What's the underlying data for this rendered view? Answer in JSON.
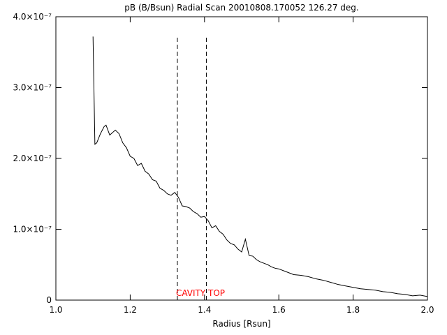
{
  "chart_data": {
    "type": "line",
    "title": "pB (B/Bsun) Radial Scan 20010808.170052 126.27 deg.",
    "x_label": "Radius [Rsun]",
    "x": [
      1.1,
      1.105,
      1.11,
      1.12,
      1.13,
      1.135,
      1.145,
      1.16,
      1.17,
      1.18,
      1.19,
      1.2,
      1.21,
      1.22,
      1.23,
      1.24,
      1.25,
      1.26,
      1.27,
      1.28,
      1.29,
      1.3,
      1.31,
      1.32,
      1.33,
      1.34,
      1.35,
      1.36,
      1.37,
      1.38,
      1.39,
      1.4,
      1.41,
      1.42,
      1.43,
      1.44,
      1.45,
      1.46,
      1.47,
      1.48,
      1.49,
      1.5,
      1.51,
      1.52,
      1.53,
      1.54,
      1.55,
      1.56,
      1.57,
      1.58,
      1.59,
      1.6,
      1.62,
      1.64,
      1.66,
      1.68,
      1.7,
      1.72,
      1.74,
      1.76,
      1.78,
      1.8,
      1.82,
      1.84,
      1.86,
      1.88,
      1.9,
      1.92,
      1.94,
      1.96,
      1.98,
      2.0
    ],
    "series": [
      {
        "color": "#000000",
        "values": [
          3.72e-07,
          2.2e-07,
          2.22e-07,
          2.35e-07,
          2.45e-07,
          2.47e-07,
          2.33e-07,
          2.4e-07,
          2.35e-07,
          2.22e-07,
          2.15e-07,
          2.03e-07,
          2e-07,
          1.9e-07,
          1.93e-07,
          1.82e-07,
          1.78e-07,
          1.7e-07,
          1.68e-07,
          1.58e-07,
          1.55e-07,
          1.5e-07,
          1.48e-07,
          1.52e-07,
          1.45e-07,
          1.33e-07,
          1.32e-07,
          1.3e-07,
          1.25e-07,
          1.22e-07,
          1.17e-07,
          1.18e-07,
          1.12e-07,
          1.02e-07,
          1.05e-07,
          9.7e-08,
          9.3e-08,
          8.5e-08,
          8e-08,
          7.8e-08,
          7.2e-08,
          6.8e-08,
          8.6e-08,
          6.3e-08,
          6.2e-08,
          5.7e-08,
          5.4e-08,
          5.2e-08,
          5e-08,
          4.7e-08,
          4.5e-08,
          4.4e-08,
          4e-08,
          3.6e-08,
          3.5e-08,
          3.3e-08,
          3e-08,
          2.8e-08,
          2.5e-08,
          2.2e-08,
          2e-08,
          1.8e-08,
          1.6e-08,
          1.5e-08,
          1.4e-08,
          1.2e-08,
          1.1e-08,
          9e-09,
          8e-09,
          6e-09,
          7e-09,
          5e-09
        ]
      }
    ],
    "xlim": [
      1.0,
      2.0
    ],
    "xticks": [
      {
        "value": 1.0,
        "label": "1.0"
      },
      1.2,
      1.4,
      1.6,
      1.8,
      {
        "value": 2.0,
        "label": "2.0"
      }
    ],
    "ylim": [
      0,
      4e-07
    ],
    "yticks": [
      0,
      {
        "value": 1e-07,
        "label": "1.0×10⁻⁷"
      },
      {
        "value": 2e-07,
        "label": "2.0×10⁻⁷"
      },
      {
        "value": 3e-07,
        "label": "3.0×10⁻⁷"
      },
      {
        "value": 4e-07,
        "label": "4.0×10⁻⁷"
      }
    ],
    "vlines": [
      1.327,
      1.405
    ],
    "annotations": [
      {
        "text": "CAVITY TOP",
        "x": 1.327,
        "color": "#ff0000"
      }
    ]
  }
}
